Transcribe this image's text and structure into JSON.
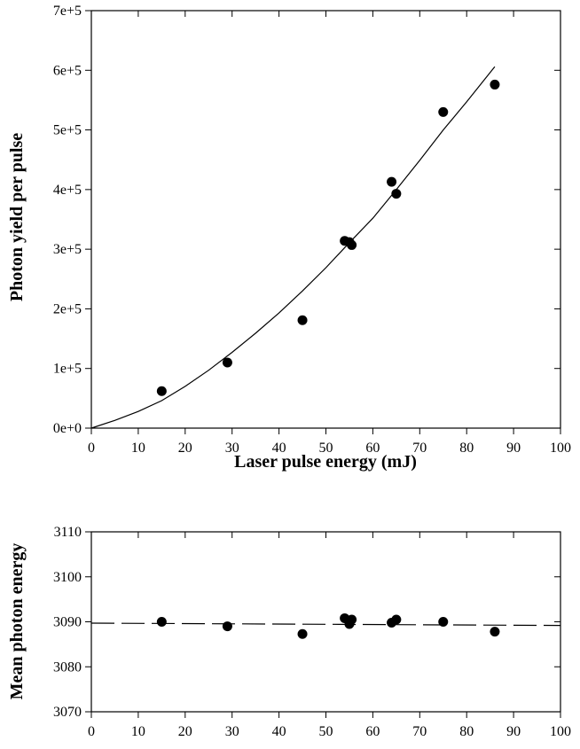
{
  "chart_data": [
    {
      "type": "scatter",
      "title": "",
      "xlabel": "Laser pulse energy (mJ)",
      "ylabel": "Photon yield per pulse",
      "xlim": [
        0,
        100
      ],
      "ylim": [
        0,
        700000
      ],
      "x_ticks": [
        "0",
        "10",
        "20",
        "30",
        "40",
        "50",
        "60",
        "70",
        "80",
        "90",
        "100"
      ],
      "y_ticks": [
        "0e+0",
        "1e+5",
        "2e+5",
        "3e+5",
        "4e+5",
        "5e+5",
        "6e+5",
        "7e+5"
      ],
      "grid": false,
      "series": [
        {
          "style": "points",
          "x": [
            15,
            29,
            45,
            54,
            55,
            55.5,
            64,
            65,
            75,
            86
          ],
          "y": [
            62000,
            110000,
            181000,
            314000,
            312000,
            307000,
            413000,
            393000,
            530000,
            576000
          ]
        },
        {
          "style": "solid-line",
          "x": [
            0,
            5,
            10,
            15,
            20,
            25,
            30,
            35,
            40,
            45,
            50,
            55,
            60,
            65,
            70,
            75,
            80,
            86
          ],
          "y": [
            0,
            13000,
            28000,
            46000,
            70000,
            97000,
            127000,
            159000,
            193000,
            230000,
            269000,
            311000,
            352000,
            400000,
            449000,
            500000,
            547000,
            606000
          ]
        }
      ]
    },
    {
      "type": "scatter",
      "title": "",
      "xlabel": "",
      "ylabel": "Mean photon energy",
      "xlim": [
        0,
        100
      ],
      "ylim": [
        3070,
        3110
      ],
      "x_ticks": [
        "0",
        "10",
        "20",
        "30",
        "40",
        "50",
        "60",
        "70",
        "80",
        "90",
        "100"
      ],
      "y_ticks": [
        "3070",
        "3080",
        "3090",
        "3100",
        "3110"
      ],
      "grid": false,
      "series": [
        {
          "style": "points",
          "x": [
            15,
            29,
            45,
            54,
            55,
            55.5,
            64,
            65,
            75,
            86
          ],
          "y": [
            3090.0,
            3089.0,
            3087.3,
            3090.8,
            3089.5,
            3090.5,
            3089.8,
            3090.5,
            3090.0,
            3087.8
          ]
        },
        {
          "style": "dashed-line",
          "x": [
            0,
            100
          ],
          "y": [
            3089.7,
            3089.2
          ]
        }
      ]
    }
  ],
  "colors": {
    "ink": "#000000",
    "background": "#ffffff"
  }
}
